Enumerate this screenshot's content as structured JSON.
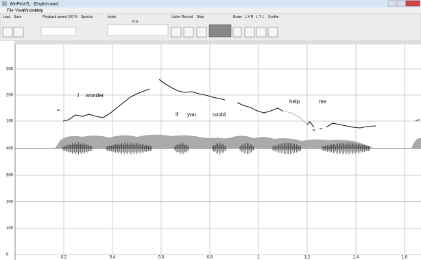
{
  "window": {
    "title": "WinPitch7L - [English.wav]"
  },
  "menu": [
    "File",
    "View",
    "Window",
    "Help"
  ],
  "toolbar": {
    "load": "Load",
    "save": "Save",
    "playback": "Playback speed 100 %",
    "spectro": "Spectro",
    "index": "Index",
    "index_value": "N S",
    "listen": "Listen",
    "record": "Record",
    "stop": "Stop",
    "erase": "Erase",
    "lxr": "L X R",
    "lyl": "L Y L",
    "synthe": "Synthe"
  },
  "plot": {
    "upper_ticks": [
      "300",
      "200",
      "100"
    ],
    "divider_label": "400",
    "lower_ticks": [
      "300",
      "200",
      "100",
      "0"
    ],
    "x_ticks": [
      "0.2",
      "0.4",
      "0.6",
      "0.8",
      "1",
      "1.2",
      "1.4",
      "1.6"
    ],
    "words": [
      "I",
      "wonder",
      "if",
      "you",
      "could",
      "help",
      "me"
    ]
  }
}
